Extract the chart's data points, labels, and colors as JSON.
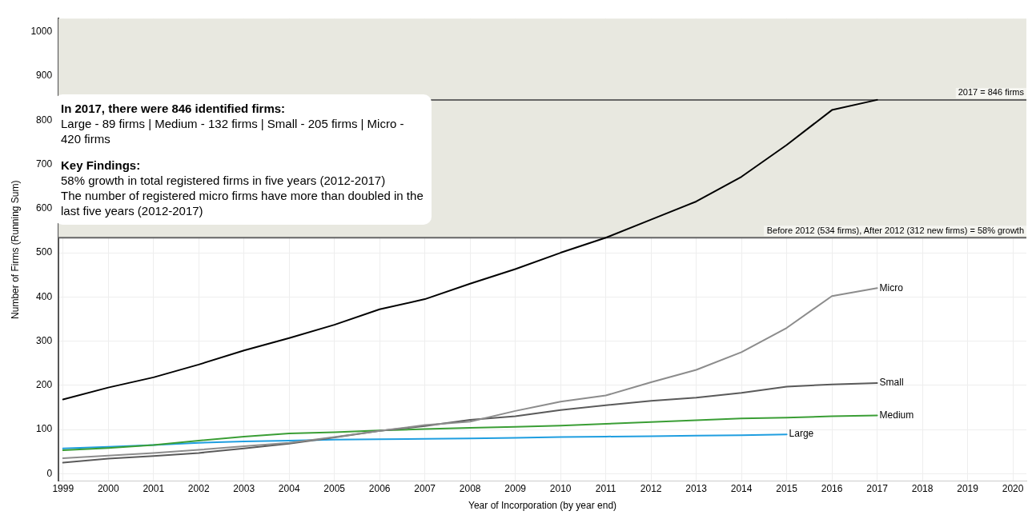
{
  "chart_data": {
    "type": "line",
    "xlabel": "Year of Incorporation (by year end)",
    "ylabel": "Number of Firms (Running Sum)",
    "x": [
      1999,
      2000,
      2001,
      2002,
      2003,
      2004,
      2005,
      2006,
      2007,
      2008,
      2009,
      2010,
      2011,
      2012,
      2013,
      2014,
      2015,
      2016,
      2017
    ],
    "series": [
      {
        "color": "#000000",
        "values": [
          168,
          195,
          218,
          247,
          279,
          307,
          337,
          372,
          395,
          430,
          463,
          500,
          534,
          575,
          616,
          672,
          744,
          823,
          846
        ]
      },
      {
        "name": "Micro",
        "color": "#8c8c8c",
        "values": [
          35,
          41,
          47,
          54,
          62,
          70,
          83,
          97,
          110,
          118,
          142,
          163,
          177,
          207,
          235,
          275,
          330,
          402,
          420
        ]
      },
      {
        "name": "Small",
        "color": "#5a5a5a",
        "values": [
          25,
          34,
          40,
          47,
          57,
          68,
          82,
          97,
          108,
          122,
          130,
          144,
          155,
          165,
          172,
          183,
          197,
          202,
          205
        ]
      },
      {
        "name": "Medium",
        "color": "#3a9e35",
        "values": [
          53,
          58,
          65,
          75,
          84,
          91,
          94,
          98,
          101,
          104,
          106,
          109,
          113,
          117,
          121,
          125,
          127,
          130,
          132
        ]
      },
      {
        "name": "Large",
        "color": "#1f9ee0",
        "values": [
          57,
          61,
          65,
          70,
          73,
          75,
          77,
          78,
          79,
          80,
          81,
          83,
          84,
          85,
          86,
          87,
          89,
          null,
          null
        ]
      }
    ],
    "xlim": [
      1998.9,
      2020.3
    ],
    "xticks": [
      1999,
      2000,
      2001,
      2002,
      2003,
      2004,
      2005,
      2006,
      2007,
      2008,
      2009,
      2010,
      2011,
      2012,
      2013,
      2014,
      2015,
      2016,
      2017,
      2018,
      2019,
      2020
    ],
    "ylim": [
      -16,
      1030
    ],
    "yticks": [
      0,
      100,
      200,
      300,
      400,
      500,
      600,
      700,
      800,
      900,
      1000
    ],
    "grid": true,
    "legend": false,
    "marker": "none",
    "line_style": "solid",
    "ref_lines": [
      {
        "axis": "y",
        "value": 846,
        "label": "2017 = 846 firms",
        "color": "#666666"
      },
      {
        "axis": "y",
        "value": 534,
        "label": "Before 2012 (534 firms), After 2012 (312 new firms) = 58% growth",
        "color": "#666666"
      }
    ],
    "bands": [
      {
        "axis": "y",
        "from": 534,
        "to": 1030,
        "color": "#e8e8e0"
      }
    ],
    "annotations": [
      "In 2017, there were 846 identified firms:",
      "Large - 89 firms | Medium - 132 firms | Small - 205 firms | Micro - 420 firms",
      "Key Findings:",
      "58% growth in total registered firms in five years (2012-2017)",
      "The number of registered micro firms have more than doubled in the last five years (2012-2017)"
    ]
  }
}
